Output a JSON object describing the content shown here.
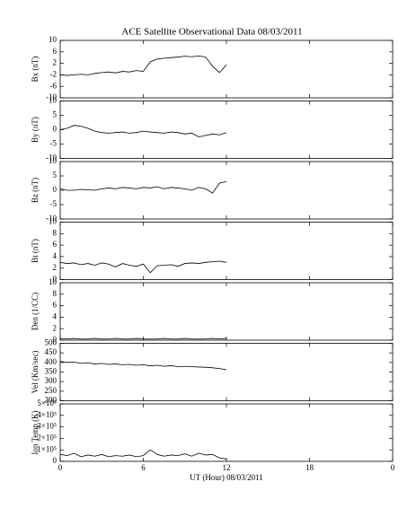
{
  "chart_data": [
    {
      "type": "line",
      "title": "ACE Satellite Observational Data   08/03/2011",
      "y_label": "Bx (nT)",
      "x": [
        0,
        0.5,
        1,
        1.5,
        2,
        2.5,
        3,
        3.5,
        4,
        4.5,
        5,
        5.5,
        6,
        6.5,
        7,
        7.5,
        8,
        8.5,
        9,
        9.5,
        10,
        10.5,
        11,
        11.5,
        12
      ],
      "values": [
        -2,
        -2.2,
        -2,
        -1.8,
        -2,
        -1.5,
        -1.2,
        -1,
        -1.3,
        -0.8,
        -1,
        -0.5,
        -0.8,
        2.5,
        3.5,
        3.8,
        4,
        4.2,
        4.5,
        4.3,
        4.6,
        4.2,
        1,
        -1.2,
        1.5
      ],
      "color": "#000000",
      "xlim": [
        0,
        24
      ],
      "xticks": [
        0,
        6,
        12,
        18,
        {
          "value": 24,
          "label": "0"
        }
      ],
      "ylim": [
        -10,
        10
      ],
      "yticks": [
        -10,
        -6,
        -2,
        2,
        6,
        10
      ]
    },
    {
      "type": "line",
      "y_label": "By (nT)",
      "x": [
        0,
        0.5,
        1,
        1.5,
        2,
        2.5,
        3,
        3.5,
        4,
        4.5,
        5,
        5.5,
        6,
        6.5,
        7,
        7.5,
        8,
        8.5,
        9,
        9.5,
        10,
        10.5,
        11,
        11.5,
        12
      ],
      "values": [
        0,
        0.5,
        1.5,
        1.2,
        0.5,
        -0.5,
        -1,
        -1.2,
        -1,
        -0.8,
        -1.2,
        -1,
        -0.5,
        -0.8,
        -1,
        -1.2,
        -0.8,
        -1,
        -1.5,
        -1.2,
        -2.5,
        -2,
        -1.5,
        -1.8,
        -1
      ],
      "color": "#000000",
      "xlim": [
        0,
        24
      ],
      "xticks": [
        0,
        6,
        12,
        18,
        {
          "value": 24,
          "label": "0"
        }
      ],
      "ylim": [
        -10,
        10
      ],
      "yticks": [
        -10,
        -5,
        0,
        5,
        10
      ]
    },
    {
      "type": "line",
      "y_label": "Bz (nT)",
      "x": [
        0,
        0.5,
        1,
        1.5,
        2,
        2.5,
        3,
        3.5,
        4,
        4.5,
        5,
        5.5,
        6,
        6.5,
        7,
        7.5,
        8,
        8.5,
        9,
        9.5,
        10,
        10.5,
        11,
        11.5,
        12
      ],
      "values": [
        0.5,
        0,
        0,
        0.3,
        0.2,
        0,
        0.5,
        0.8,
        0.5,
        1,
        0.8,
        0.5,
        1,
        0.8,
        1.2,
        0.5,
        1,
        0.8,
        0.5,
        0,
        1,
        0.5,
        -1,
        2.5,
        3
      ],
      "color": "#000000",
      "xlim": [
        0,
        24
      ],
      "xticks": [
        0,
        6,
        12,
        18,
        {
          "value": 24,
          "label": "0"
        }
      ],
      "ylim": [
        -10,
        10
      ],
      "yticks": [
        -10,
        -5,
        0,
        5,
        10
      ]
    },
    {
      "type": "line",
      "y_label": "Bt (nT)",
      "x": [
        0,
        0.5,
        1,
        1.5,
        2,
        2.5,
        3,
        3.5,
        4,
        4.5,
        5,
        5.5,
        6,
        6.5,
        7,
        7.5,
        8,
        8.5,
        9,
        9.5,
        10,
        10.5,
        11,
        11.5,
        12
      ],
      "values": [
        3,
        2.8,
        2.9,
        2.6,
        2.8,
        2.5,
        2.9,
        2.7,
        2.2,
        2.8,
        2.5,
        2.3,
        2.7,
        1.2,
        2.4,
        2.5,
        2.6,
        2.3,
        2.8,
        2.9,
        2.8,
        3,
        3.1,
        3.2,
        3
      ],
      "color": "#000000",
      "xlim": [
        0,
        24
      ],
      "xticks": [
        0,
        6,
        12,
        18,
        {
          "value": 24,
          "label": "0"
        }
      ],
      "ylim": [
        0,
        10
      ],
      "yticks": [
        0,
        2,
        4,
        6,
        8,
        10
      ]
    },
    {
      "type": "line",
      "y_label": "Den (1/CC)",
      "x": [
        0,
        0.5,
        1,
        1.5,
        2,
        2.5,
        3,
        3.5,
        4,
        4.5,
        5,
        5.5,
        6,
        6.5,
        7,
        7.5,
        8,
        8.5,
        9,
        9.5,
        10,
        10.5,
        11,
        11.5,
        12
      ],
      "values": [
        0.3,
        0.2,
        0.3,
        0.2,
        0.2,
        0.3,
        0.2,
        0.2,
        0.3,
        0.2,
        0.2,
        0.3,
        0.2,
        0.2,
        0.2,
        0.3,
        0.2,
        0.2,
        0.3,
        0.2,
        0.2,
        0.2,
        0.3,
        0.2,
        0.3
      ],
      "color": "#000000",
      "xlim": [
        0,
        24
      ],
      "xticks": [
        0,
        6,
        12,
        18,
        {
          "value": 24,
          "label": "0"
        }
      ],
      "ylim": [
        0,
        10
      ],
      "yticks": [
        0,
        2,
        4,
        6,
        8,
        10
      ]
    },
    {
      "type": "line",
      "y_label": "Vel (Km/sec)",
      "x": [
        0,
        0.5,
        1,
        1.5,
        2,
        2.5,
        3,
        3.5,
        4,
        4.5,
        5,
        5.5,
        6,
        6.5,
        7,
        7.5,
        8,
        8.5,
        9,
        9.5,
        10,
        10.5,
        11,
        11.5,
        12
      ],
      "values": [
        405,
        400,
        402,
        395,
        398,
        392,
        395,
        390,
        392,
        388,
        390,
        385,
        388,
        382,
        385,
        380,
        383,
        378,
        380,
        378,
        376,
        375,
        372,
        368,
        362
      ],
      "color": "#000000",
      "xlim": [
        0,
        24
      ],
      "xticks": [
        0,
        6,
        12,
        18,
        {
          "value": 24,
          "label": "0"
        }
      ],
      "ylim": [
        200,
        500
      ],
      "yticks": [
        200,
        250,
        300,
        350,
        400,
        450,
        500
      ]
    },
    {
      "type": "line",
      "y_label": "Ion Temp (K)",
      "x_label": "UT (Hour)   08/03/2011",
      "x": [
        0,
        0.5,
        1,
        1.5,
        2,
        2.5,
        3,
        3.5,
        4,
        4.5,
        5,
        5.5,
        6,
        6.5,
        7,
        7.5,
        8,
        8.5,
        9,
        9.5,
        10,
        10.5,
        11,
        11.5,
        12
      ],
      "values": [
        60000,
        50000,
        70000,
        40000,
        55000,
        45000,
        60000,
        40000,
        50000,
        45000,
        55000,
        40000,
        50000,
        100000,
        60000,
        45000,
        55000,
        50000,
        65000,
        45000,
        70000,
        55000,
        60000,
        30000,
        20000
      ],
      "color": "#000000",
      "xlim": [
        0,
        24
      ],
      "xticks": [
        0,
        6,
        12,
        18,
        {
          "value": 24,
          "label": "0"
        }
      ],
      "ylim": [
        0,
        500000
      ],
      "yticks": [
        0,
        {
          "value": 100000,
          "label": "1×10⁵"
        },
        {
          "value": 200000,
          "label": "2×10⁵"
        },
        {
          "value": 300000,
          "label": "3×10⁵"
        },
        {
          "value": 400000,
          "label": "4×10⁵"
        },
        {
          "value": 500000,
          "label": "5×10⁵"
        }
      ]
    }
  ]
}
